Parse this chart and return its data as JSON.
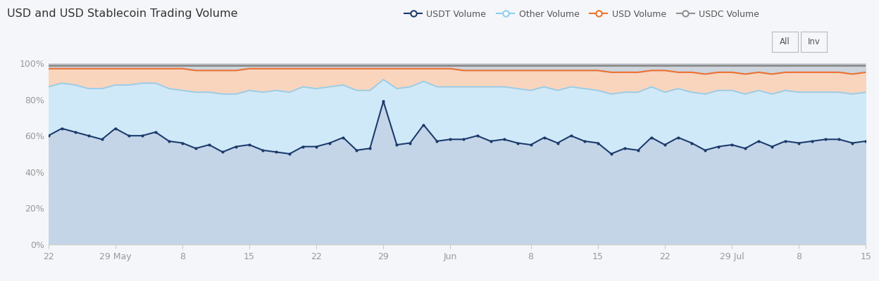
{
  "title": "USD and USD Stablecoin Trading Volume",
  "background_color": "#f4f6f9",
  "ylim": [
    0,
    1.0
  ],
  "yticks": [
    0,
    0.2,
    0.4,
    0.6,
    0.8,
    1.0
  ],
  "ytick_labels": [
    "0%",
    "20%",
    "40%",
    "60%",
    "80%",
    "100%"
  ],
  "x_tick_labels": [
    "22",
    "29 May",
    "8",
    "15",
    "22",
    "29",
    "Jun",
    "8",
    "15",
    "22",
    "29 Jul",
    "8",
    "15"
  ],
  "usdt_color": "#1b3a6b",
  "other_color": "#90cef0",
  "usd_color": "#f07030",
  "usdc_color": "#909090",
  "fill_usdt_color": "#c5d5e8",
  "fill_other_color": "#d0e9f8",
  "fill_usd_color": "#f9d5be",
  "fill_usdc_color": "#cdd4dc",
  "grid_color": "#dde2e8",
  "legend_labels": [
    "USDT Volume",
    "Other Volume",
    "USD Volume",
    "USDC Volume"
  ],
  "usdt_data": [
    0.6,
    0.64,
    0.62,
    0.6,
    0.58,
    0.64,
    0.6,
    0.6,
    0.62,
    0.57,
    0.56,
    0.53,
    0.55,
    0.51,
    0.54,
    0.55,
    0.52,
    0.51,
    0.5,
    0.54,
    0.54,
    0.56,
    0.59,
    0.52,
    0.53,
    0.79,
    0.55,
    0.56,
    0.66,
    0.57,
    0.58,
    0.58,
    0.6,
    0.57,
    0.58,
    0.56,
    0.55,
    0.59,
    0.56,
    0.6,
    0.57,
    0.56,
    0.5,
    0.53,
    0.52,
    0.59,
    0.55,
    0.59,
    0.56,
    0.52,
    0.54,
    0.55,
    0.53,
    0.57,
    0.54,
    0.57,
    0.56,
    0.57,
    0.58,
    0.58,
    0.56,
    0.57
  ],
  "other_data": [
    0.87,
    0.89,
    0.88,
    0.86,
    0.86,
    0.88,
    0.88,
    0.89,
    0.89,
    0.86,
    0.85,
    0.84,
    0.84,
    0.83,
    0.83,
    0.85,
    0.84,
    0.85,
    0.84,
    0.87,
    0.86,
    0.87,
    0.88,
    0.85,
    0.85,
    0.91,
    0.86,
    0.87,
    0.9,
    0.87,
    0.87,
    0.87,
    0.87,
    0.87,
    0.87,
    0.86,
    0.85,
    0.87,
    0.85,
    0.87,
    0.86,
    0.85,
    0.83,
    0.84,
    0.84,
    0.87,
    0.84,
    0.86,
    0.84,
    0.83,
    0.85,
    0.85,
    0.83,
    0.85,
    0.83,
    0.85,
    0.84,
    0.84,
    0.84,
    0.84,
    0.83,
    0.84
  ],
  "usd_data": [
    0.97,
    0.97,
    0.97,
    0.97,
    0.97,
    0.97,
    0.97,
    0.97,
    0.97,
    0.97,
    0.97,
    0.96,
    0.96,
    0.96,
    0.96,
    0.97,
    0.97,
    0.97,
    0.97,
    0.97,
    0.97,
    0.97,
    0.97,
    0.97,
    0.97,
    0.97,
    0.97,
    0.97,
    0.97,
    0.97,
    0.97,
    0.96,
    0.96,
    0.96,
    0.96,
    0.96,
    0.96,
    0.96,
    0.96,
    0.96,
    0.96,
    0.96,
    0.95,
    0.95,
    0.95,
    0.96,
    0.96,
    0.95,
    0.95,
    0.94,
    0.95,
    0.95,
    0.94,
    0.95,
    0.94,
    0.95,
    0.95,
    0.95,
    0.95,
    0.95,
    0.94,
    0.95
  ],
  "usdc_data": [
    0.99,
    0.99,
    0.99,
    0.99,
    0.99,
    0.99,
    0.99,
    0.99,
    0.99,
    0.99,
    0.99,
    0.99,
    0.99,
    0.99,
    0.99,
    0.99,
    0.99,
    0.99,
    0.99,
    0.99,
    0.99,
    0.99,
    0.99,
    0.99,
    0.99,
    0.99,
    0.99,
    0.99,
    0.99,
    0.99,
    0.99,
    0.99,
    0.99,
    0.99,
    0.99,
    0.99,
    0.99,
    0.99,
    0.99,
    0.99,
    0.99,
    0.99,
    0.99,
    0.99,
    0.99,
    0.99,
    0.99,
    0.99,
    0.99,
    0.99,
    0.99,
    0.99,
    0.99,
    0.99,
    0.99,
    0.99,
    0.99,
    0.99,
    0.99,
    0.99,
    0.99,
    0.99
  ]
}
